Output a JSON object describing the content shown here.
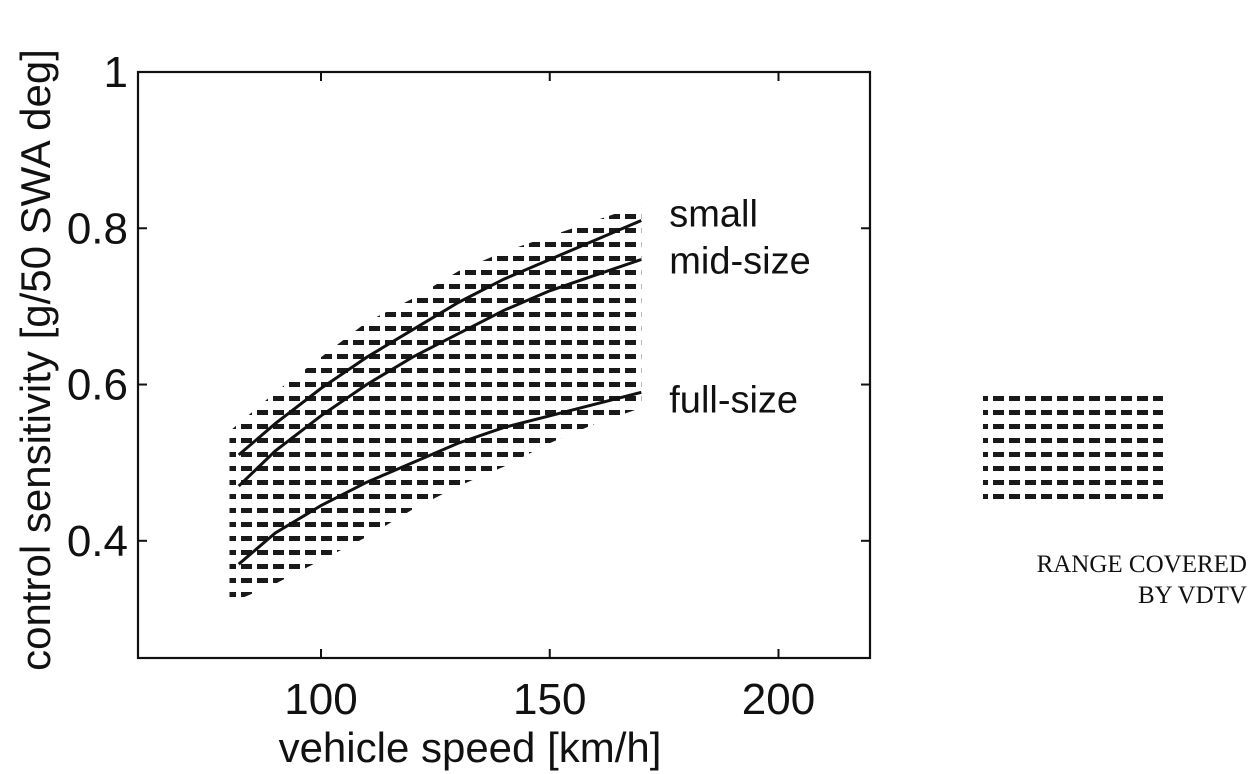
{
  "chart_data": {
    "type": "line",
    "title": "",
    "xlabel": "vehicle speed [km/h]",
    "ylabel": "control sensitivity [g/50 SWA deg]",
    "xlim": [
      60,
      220
    ],
    "ylim": [
      0.25,
      1.0
    ],
    "xticks": [
      100,
      150,
      200
    ],
    "yticks": [
      0.4,
      0.6,
      0.8,
      1
    ],
    "ytick_labels": [
      "0.4",
      "0.6",
      "0.8",
      "1"
    ],
    "grid": false,
    "series": [
      {
        "name": "small",
        "x": [
          82,
          90,
          100,
          110,
          120,
          130,
          140,
          150,
          160,
          170
        ],
        "y": [
          0.51,
          0.55,
          0.595,
          0.635,
          0.67,
          0.705,
          0.735,
          0.76,
          0.785,
          0.81
        ]
      },
      {
        "name": "mid-size",
        "x": [
          82,
          90,
          100,
          110,
          120,
          130,
          140,
          150,
          160,
          170
        ],
        "y": [
          0.47,
          0.515,
          0.56,
          0.6,
          0.635,
          0.665,
          0.695,
          0.72,
          0.74,
          0.76
        ]
      },
      {
        "name": "full-size",
        "x": [
          82,
          90,
          100,
          110,
          120,
          130,
          140,
          150,
          160,
          170
        ],
        "y": [
          0.37,
          0.41,
          0.445,
          0.475,
          0.5,
          0.525,
          0.545,
          0.56,
          0.575,
          0.59
        ]
      }
    ],
    "range_band": {
      "x": [
        80,
        90,
        100,
        110,
        120,
        130,
        140,
        150,
        160,
        170
      ],
      "upper": [
        0.54,
        0.59,
        0.635,
        0.68,
        0.71,
        0.745,
        0.77,
        0.79,
        0.81,
        0.83
      ],
      "lower": [
        0.32,
        0.345,
        0.375,
        0.405,
        0.44,
        0.47,
        0.495,
        0.525,
        0.55,
        0.57
      ]
    },
    "legend": {
      "placement": "right",
      "label_line1": "RANGE COVERED",
      "label_line2": "BY VDTV"
    }
  }
}
